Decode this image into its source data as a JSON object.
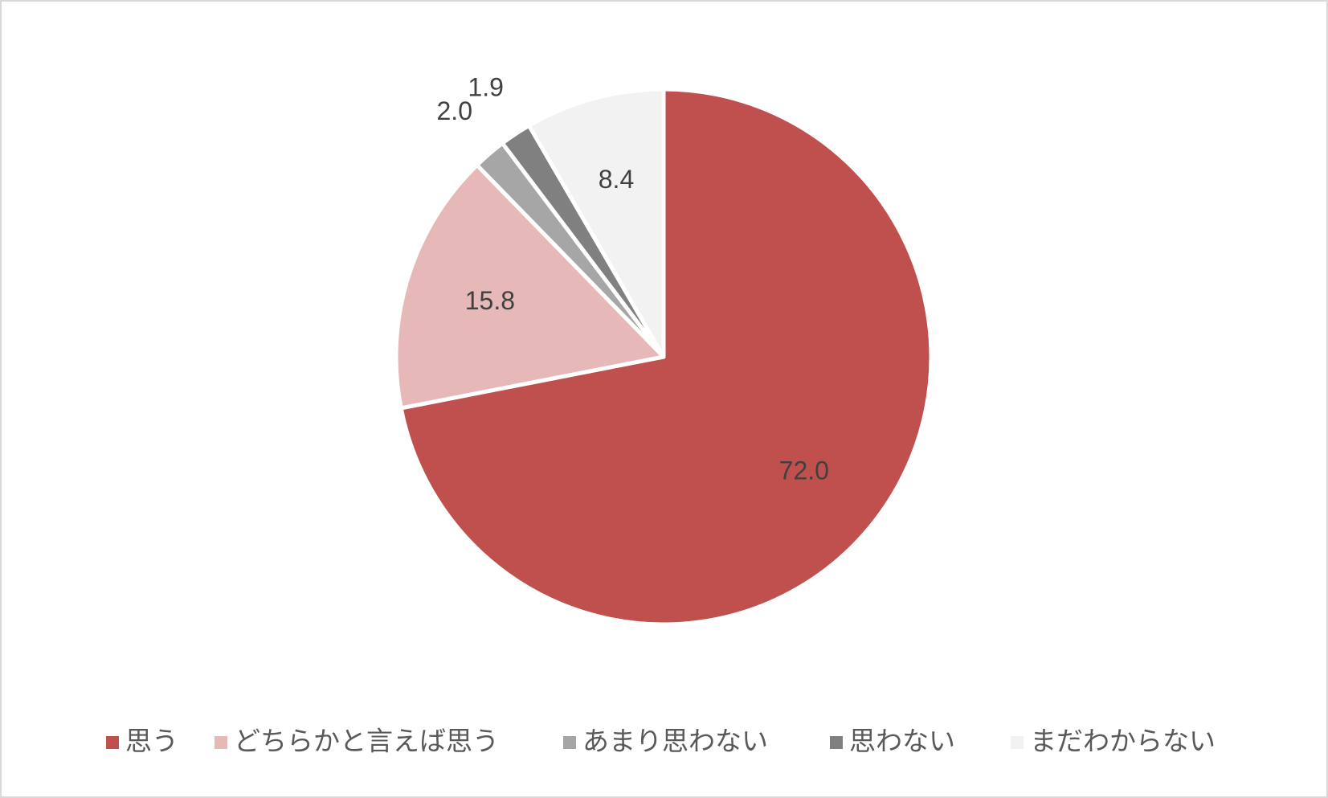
{
  "chart_data": {
    "type": "pie",
    "categories": [
      "思う",
      "どちらかと言えば思う",
      "あまり思わない",
      "思わない",
      "まだわからない"
    ],
    "values": [
      72.0,
      15.8,
      2.0,
      1.9,
      8.4
    ],
    "value_labels": [
      "72.0",
      "15.8",
      "2.0",
      "1.9",
      "8.4"
    ],
    "colors": [
      "#c0504d",
      "#e6b9b8",
      "#a6a6a6",
      "#808080",
      "#f2f2f2"
    ],
    "legend": "bottom"
  }
}
